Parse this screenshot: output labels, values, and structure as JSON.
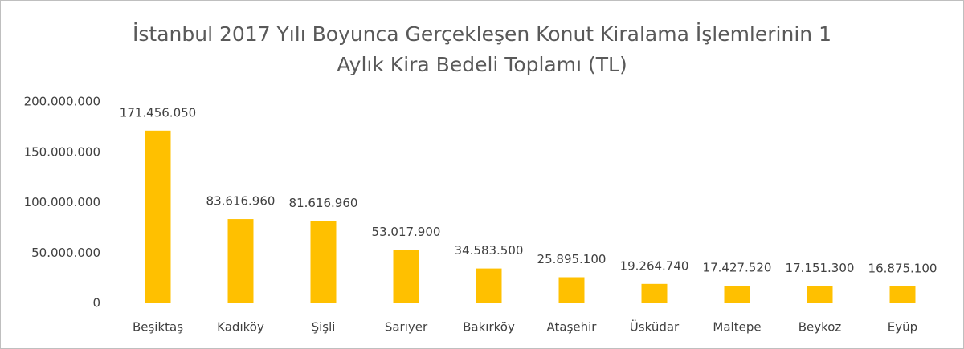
{
  "chart_data": {
    "type": "bar",
    "title": [
      "İstanbul 2017 Yılı Boyunca Gerçekleşen Konut Kiralama İşlemlerinin 1",
      "Aylık Kira Bedeli  Toplamı (TL)"
    ],
    "categories": [
      "Beşiktaş",
      "Kadıköy",
      "Şişli",
      "Sarıyer",
      "Bakırköy",
      "Ataşehir",
      "Üsküdar",
      "Maltepe",
      "Beykoz",
      "Eyüp"
    ],
    "values": [
      171456050,
      83616960,
      81616960,
      53017900,
      34583500,
      25895100,
      19264740,
      17427520,
      17151300,
      16875100
    ],
    "value_labels": [
      "171.456.050",
      "83.616.960",
      "81.616.960",
      "53.017.900",
      "34.583.500",
      "25.895.100",
      "19.264.740",
      "17.427.520",
      "17.151.300",
      "16.875.100"
    ],
    "color": "#ffc000",
    "ylim": [
      0,
      200000000
    ],
    "yticks": [
      0,
      {
        "value": 50000000,
        "label": "50.000.000"
      },
      {
        "value": 100000000,
        "label": "100.000.000"
      },
      {
        "value": 150000000,
        "label": "150.000.000"
      },
      {
        "value": 200000000,
        "label": "200.000.000"
      }
    ],
    "grid": false
  }
}
